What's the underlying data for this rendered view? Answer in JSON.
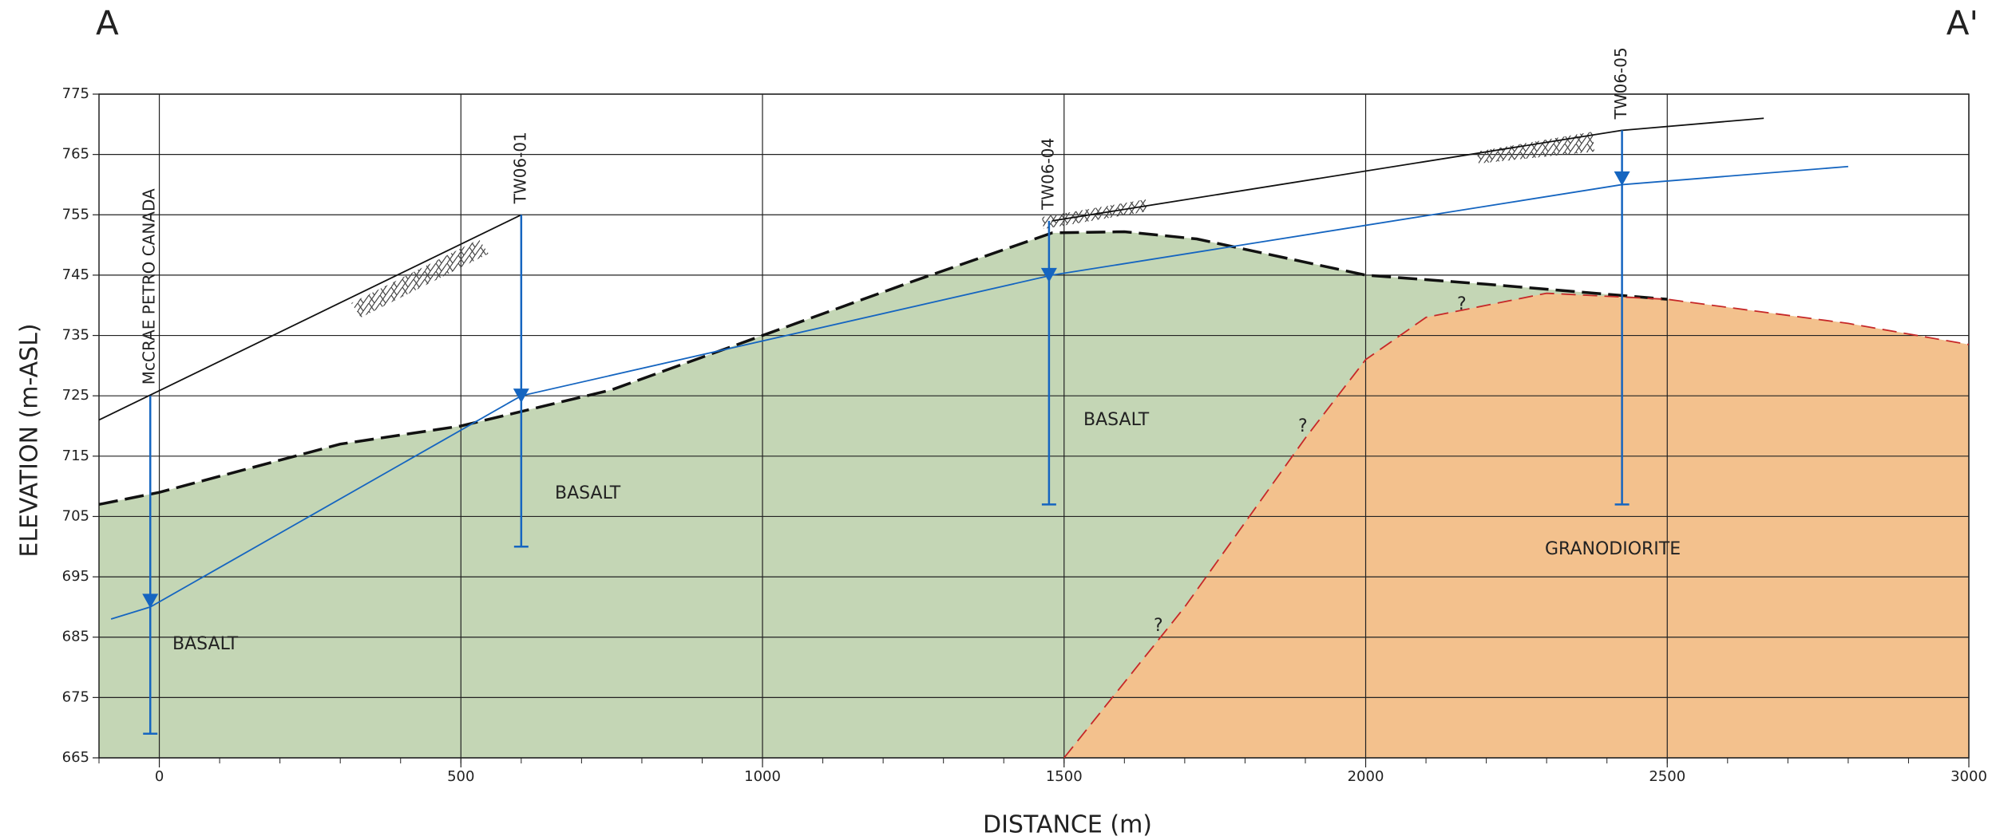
{
  "chart_data": {
    "type": "cross-section",
    "section_labels": [
      "A",
      "A'"
    ],
    "x_label": "DISTANCE (m)",
    "y_label": "ELEVATION (m-ASL)",
    "xlim": [
      -100,
      3000
    ],
    "ylim": [
      665,
      775
    ],
    "xticks": [
      0,
      500,
      1000,
      1500,
      2000,
      2500,
      3000
    ],
    "yticks": [
      665,
      675,
      685,
      695,
      705,
      715,
      725,
      735,
      745,
      755,
      765,
      775
    ],
    "grid": true,
    "fills": [
      "#c4d6b5",
      "#f3c18d"
    ],
    "surfaces": [
      {
        "color": "#111111",
        "dashed": false,
        "x": [
          -100,
          600,
          null,
          1480,
          2425,
          2660
        ],
        "values": [
          721,
          755,
          null,
          754,
          769,
          771
        ]
      },
      {
        "color": "#111111",
        "dashed": true,
        "x": [
          -100,
          0,
          300,
          500,
          750,
          1000,
          1250,
          1480,
          1600,
          1720,
          2000,
          2200,
          2500
        ],
        "values": [
          707,
          709,
          717,
          720,
          726,
          735,
          744,
          752,
          752.2,
          751,
          745,
          743.5,
          741
        ]
      },
      {
        "color": "#c62828",
        "dashed": true,
        "x": [
          1500,
          1700,
          1900,
          2000,
          2100,
          2300,
          2500,
          2800,
          3000
        ],
        "values": [
          665,
          690,
          718,
          731,
          738,
          742,
          741,
          737,
          733.5
        ]
      },
      {
        "color": "#1565c0",
        "dashed": false,
        "x": [
          -80,
          -15,
          600,
          1480,
          2425,
          2800
        ],
        "values": [
          688,
          690,
          725,
          745,
          760,
          763
        ]
      }
    ],
    "wells": [
      {
        "label": "McCRAE PETRO CANADA",
        "x": -15,
        "top": 725,
        "bottom": 669,
        "water": 691
      },
      {
        "label": "TW06-01",
        "x": 600,
        "top": 755,
        "bottom": 700,
        "water": 725
      },
      {
        "label": "TW06-04",
        "x": 1475,
        "top": 754,
        "bottom": 707,
        "water": 745
      },
      {
        "label": "TW06-05",
        "x": 2425,
        "top": 769,
        "bottom": 707,
        "water": 761
      }
    ],
    "unit_labels": [
      "BASALT",
      "BASALT",
      "BASALT",
      "GRANODIORITE"
    ],
    "question_marks": [
      "?",
      "?",
      "?"
    ]
  }
}
